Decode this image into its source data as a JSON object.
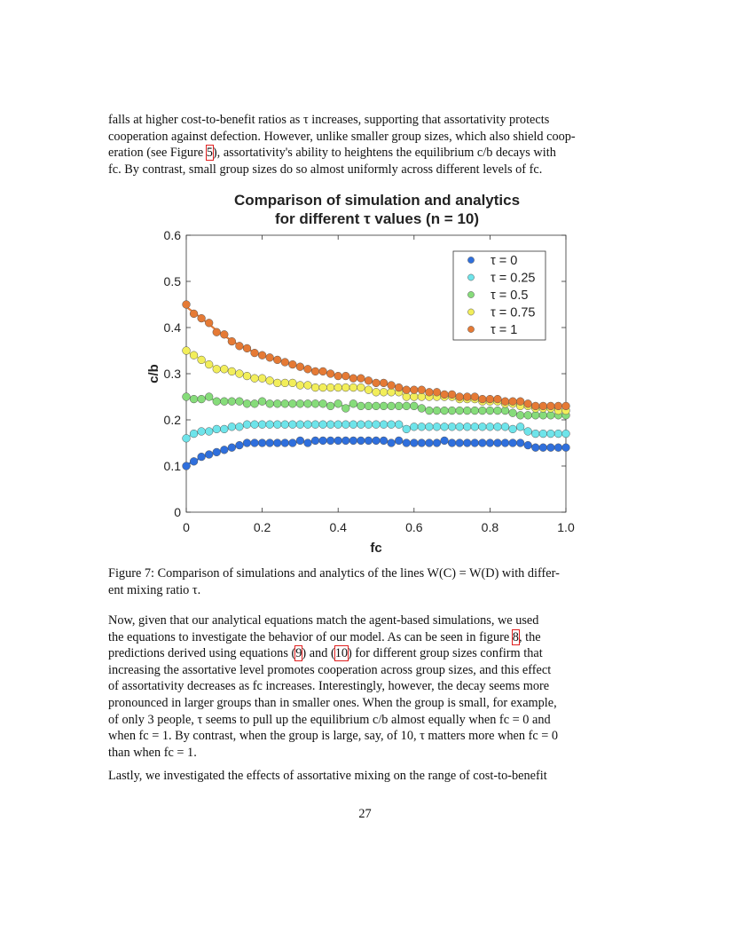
{
  "top_paragraph": {
    "line1": "falls at higher cost-to-benefit ratios as τ increases, supporting that assortativity protects",
    "line2": "cooperation against defection. However, unlike smaller group sizes, which also shield coop-",
    "line3_pre": "eration (see Figure ",
    "line3_ref": "5",
    "line3_post": "), assortativity's ability to heightens the equilibrium c/b decays with",
    "line4": "fc. By contrast, small group sizes do so almost uniformly across different levels of fc."
  },
  "chart_data": {
    "type": "scatter",
    "title": "Comparison of simulation and analytics",
    "subtitle": "for different τ values (n = 10)",
    "xlabel": "fc",
    "ylabel": "c/b",
    "xlim": [
      0,
      1
    ],
    "ylim": [
      0,
      0.6
    ],
    "xticks": [
      "0",
      "0.2",
      "0.4",
      "0.6",
      "0.8",
      "1.0"
    ],
    "yticks": [
      "0",
      "0.1",
      "0.2",
      "0.3",
      "0.4",
      "0.5",
      "0.6"
    ],
    "legend_position": "top-right",
    "grid": false,
    "series": [
      {
        "name": "τ = 0",
        "color": "#2f6fdc",
        "x": [
          0,
          0.02,
          0.04,
          0.06,
          0.08,
          0.1,
          0.12,
          0.14,
          0.16,
          0.18,
          0.2,
          0.22,
          0.24,
          0.26,
          0.28,
          0.3,
          0.32,
          0.34,
          0.36,
          0.38,
          0.4,
          0.42,
          0.44,
          0.46,
          0.48,
          0.5,
          0.52,
          0.54,
          0.56,
          0.58,
          0.6,
          0.62,
          0.64,
          0.66,
          0.68,
          0.7,
          0.72,
          0.74,
          0.76,
          0.78,
          0.8,
          0.82,
          0.84,
          0.86,
          0.88,
          0.9,
          0.92,
          0.94,
          0.96,
          0.98,
          1.0
        ],
        "y": [
          0.1,
          0.11,
          0.12,
          0.125,
          0.13,
          0.135,
          0.14,
          0.145,
          0.15,
          0.15,
          0.15,
          0.15,
          0.15,
          0.15,
          0.15,
          0.155,
          0.15,
          0.155,
          0.155,
          0.155,
          0.155,
          0.155,
          0.155,
          0.155,
          0.155,
          0.155,
          0.155,
          0.15,
          0.155,
          0.15,
          0.15,
          0.15,
          0.15,
          0.15,
          0.155,
          0.15,
          0.15,
          0.15,
          0.15,
          0.15,
          0.15,
          0.15,
          0.15,
          0.15,
          0.15,
          0.145,
          0.14,
          0.14,
          0.14,
          0.14,
          0.14
        ]
      },
      {
        "name": "τ = 0.25",
        "color": "#6ee4ea",
        "x": [
          0,
          0.02,
          0.04,
          0.06,
          0.08,
          0.1,
          0.12,
          0.14,
          0.16,
          0.18,
          0.2,
          0.22,
          0.24,
          0.26,
          0.28,
          0.3,
          0.32,
          0.34,
          0.36,
          0.38,
          0.4,
          0.42,
          0.44,
          0.46,
          0.48,
          0.5,
          0.52,
          0.54,
          0.56,
          0.58,
          0.6,
          0.62,
          0.64,
          0.66,
          0.68,
          0.7,
          0.72,
          0.74,
          0.76,
          0.78,
          0.8,
          0.82,
          0.84,
          0.86,
          0.88,
          0.9,
          0.92,
          0.94,
          0.96,
          0.98,
          1.0
        ],
        "y": [
          0.16,
          0.17,
          0.175,
          0.175,
          0.18,
          0.18,
          0.185,
          0.185,
          0.19,
          0.19,
          0.19,
          0.19,
          0.19,
          0.19,
          0.19,
          0.19,
          0.19,
          0.19,
          0.19,
          0.19,
          0.19,
          0.19,
          0.19,
          0.19,
          0.19,
          0.19,
          0.19,
          0.19,
          0.19,
          0.18,
          0.185,
          0.185,
          0.185,
          0.185,
          0.185,
          0.185,
          0.185,
          0.185,
          0.185,
          0.185,
          0.185,
          0.185,
          0.185,
          0.18,
          0.185,
          0.175,
          0.17,
          0.17,
          0.17,
          0.17,
          0.17
        ]
      },
      {
        "name": "τ = 0.5",
        "color": "#86dc7a",
        "x": [
          0,
          0.02,
          0.04,
          0.06,
          0.08,
          0.1,
          0.12,
          0.14,
          0.16,
          0.18,
          0.2,
          0.22,
          0.24,
          0.26,
          0.28,
          0.3,
          0.32,
          0.34,
          0.36,
          0.38,
          0.4,
          0.42,
          0.44,
          0.46,
          0.48,
          0.5,
          0.52,
          0.54,
          0.56,
          0.58,
          0.6,
          0.62,
          0.64,
          0.66,
          0.68,
          0.7,
          0.72,
          0.74,
          0.76,
          0.78,
          0.8,
          0.82,
          0.84,
          0.86,
          0.88,
          0.9,
          0.92,
          0.94,
          0.96,
          0.98,
          1.0
        ],
        "y": [
          0.25,
          0.245,
          0.245,
          0.25,
          0.24,
          0.24,
          0.24,
          0.24,
          0.235,
          0.235,
          0.24,
          0.235,
          0.235,
          0.235,
          0.235,
          0.235,
          0.235,
          0.235,
          0.235,
          0.23,
          0.235,
          0.225,
          0.235,
          0.23,
          0.23,
          0.23,
          0.23,
          0.23,
          0.23,
          0.23,
          0.23,
          0.225,
          0.22,
          0.22,
          0.22,
          0.22,
          0.22,
          0.22,
          0.22,
          0.22,
          0.22,
          0.22,
          0.22,
          0.215,
          0.21,
          0.21,
          0.21,
          0.21,
          0.21,
          0.21,
          0.21
        ]
      },
      {
        "name": "τ = 0.75",
        "color": "#f2ee5a",
        "x": [
          0,
          0.02,
          0.04,
          0.06,
          0.08,
          0.1,
          0.12,
          0.14,
          0.16,
          0.18,
          0.2,
          0.22,
          0.24,
          0.26,
          0.28,
          0.3,
          0.32,
          0.34,
          0.36,
          0.38,
          0.4,
          0.42,
          0.44,
          0.46,
          0.48,
          0.5,
          0.52,
          0.54,
          0.56,
          0.58,
          0.6,
          0.62,
          0.64,
          0.66,
          0.68,
          0.7,
          0.72,
          0.74,
          0.76,
          0.78,
          0.8,
          0.82,
          0.84,
          0.86,
          0.88,
          0.9,
          0.92,
          0.94,
          0.96,
          0.98,
          1.0
        ],
        "y": [
          0.35,
          0.34,
          0.33,
          0.32,
          0.31,
          0.31,
          0.305,
          0.3,
          0.295,
          0.29,
          0.29,
          0.285,
          0.28,
          0.28,
          0.28,
          0.275,
          0.275,
          0.27,
          0.27,
          0.27,
          0.27,
          0.27,
          0.27,
          0.27,
          0.265,
          0.26,
          0.26,
          0.26,
          0.26,
          0.25,
          0.25,
          0.25,
          0.25,
          0.25,
          0.25,
          0.25,
          0.245,
          0.245,
          0.245,
          0.24,
          0.24,
          0.24,
          0.235,
          0.235,
          0.23,
          0.23,
          0.225,
          0.225,
          0.225,
          0.22,
          0.22
        ]
      },
      {
        "name": "τ = 1",
        "color": "#e57a35",
        "x": [
          0,
          0.02,
          0.04,
          0.06,
          0.08,
          0.1,
          0.12,
          0.14,
          0.16,
          0.18,
          0.2,
          0.22,
          0.24,
          0.26,
          0.28,
          0.3,
          0.32,
          0.34,
          0.36,
          0.38,
          0.4,
          0.42,
          0.44,
          0.46,
          0.48,
          0.5,
          0.52,
          0.54,
          0.56,
          0.58,
          0.6,
          0.62,
          0.64,
          0.66,
          0.68,
          0.7,
          0.72,
          0.74,
          0.76,
          0.78,
          0.8,
          0.82,
          0.84,
          0.86,
          0.88,
          0.9,
          0.92,
          0.94,
          0.96,
          0.98,
          1.0
        ],
        "y": [
          0.45,
          0.43,
          0.42,
          0.41,
          0.39,
          0.385,
          0.37,
          0.36,
          0.355,
          0.345,
          0.34,
          0.335,
          0.33,
          0.325,
          0.32,
          0.315,
          0.31,
          0.305,
          0.305,
          0.3,
          0.295,
          0.295,
          0.29,
          0.29,
          0.285,
          0.28,
          0.28,
          0.275,
          0.27,
          0.265,
          0.265,
          0.265,
          0.26,
          0.26,
          0.255,
          0.255,
          0.25,
          0.25,
          0.25,
          0.245,
          0.245,
          0.245,
          0.24,
          0.24,
          0.24,
          0.235,
          0.23,
          0.23,
          0.23,
          0.23,
          0.23
        ]
      }
    ]
  },
  "caption": {
    "line1": "Figure 7: Comparison of simulations and analytics of the lines W(C) = W(D) with differ-",
    "line2": "ent mixing ratio τ."
  },
  "paragraph2": {
    "line1": "Now, given that our analytical equations match the agent-based simulations, we used",
    "line2_pre": "the equations to investigate the behavior of our model. As can be seen in figure ",
    "line2_ref": "8",
    "line2_post": ", the",
    "line3_pre": "predictions derived using equations (",
    "line3_ref1": "9",
    "line3_mid": ") and (",
    "line3_ref2": "10",
    "line3_post": ") for different group sizes confirm that",
    "line4": "increasing the assortative level promotes cooperation across group sizes, and this effect",
    "line5": "of assortativity decreases as fc increases. Interestingly, however, the decay seems more",
    "line6": "pronounced in larger groups than in smaller ones. When the group is small, for example,",
    "line7": "of only 3 people, τ seems to pull up the equilibrium c/b almost equally when fc = 0 and",
    "line8": "when fc = 1. By contrast, when the group is large, say, of 10, τ matters more when fc = 0",
    "line9": "than when fc = 1."
  },
  "paragraph3": {
    "line1": "Lastly, we investigated the effects of assortative mixing on the range of cost-to-benefit"
  },
  "page_number": "27"
}
